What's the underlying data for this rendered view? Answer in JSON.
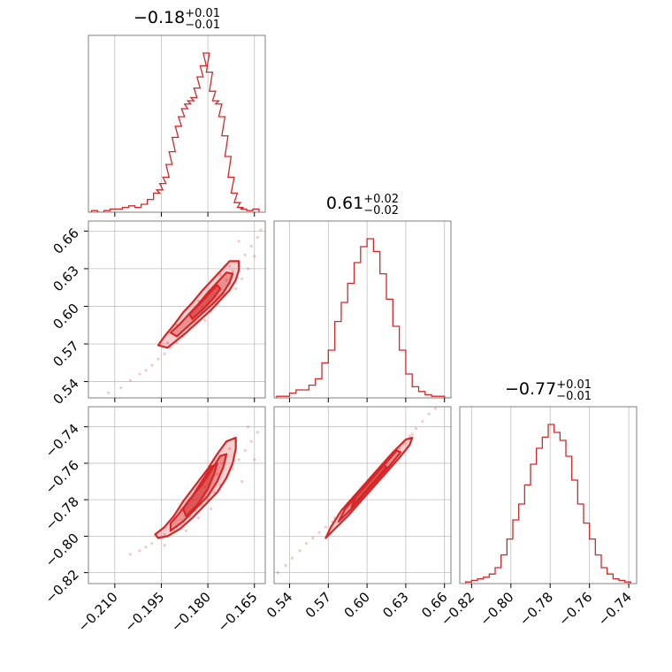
{
  "figure": {
    "accent": "#d62728"
  },
  "chart_data": [
    {
      "type": "histogram",
      "panel": "p00",
      "param_index": 0,
      "title": {
        "median": "−0.18",
        "plus": "+0.01",
        "minus": "−0.01"
      },
      "x": [
        -0.2185,
        -0.2165,
        -0.2145,
        -0.2125,
        -0.2105,
        -0.2085,
        -0.2065,
        -0.2045,
        -0.2025,
        -0.2005,
        -0.1985,
        -0.1965,
        -0.1955,
        -0.1945,
        -0.1935,
        -0.1925,
        -0.1915,
        -0.1905,
        -0.1895,
        -0.1885,
        -0.1875,
        -0.1865,
        -0.1855,
        -0.1845,
        -0.1835,
        -0.1825,
        -0.1815,
        -0.1805,
        -0.1795,
        -0.1785,
        -0.1775,
        -0.1765,
        -0.1755,
        -0.1745,
        -0.1735,
        -0.1725,
        -0.1715,
        -0.1705,
        -0.1695,
        -0.1685,
        -0.1665,
        -0.1645
      ],
      "values": [
        0.0,
        0.01,
        0.0,
        0.01,
        0.02,
        0.02,
        0.03,
        0.04,
        0.03,
        0.05,
        0.08,
        0.12,
        0.14,
        0.18,
        0.22,
        0.3,
        0.38,
        0.47,
        0.54,
        0.6,
        0.65,
        0.68,
        0.7,
        0.72,
        0.78,
        0.85,
        0.92,
        1.0,
        0.88,
        0.76,
        0.7,
        0.68,
        0.6,
        0.48,
        0.35,
        0.22,
        0.12,
        0.06,
        0.03,
        0.02,
        0.01,
        0.02
      ],
      "xlim": [
        -0.2185,
        -0.1615
      ],
      "grid": true
    },
    {
      "type": "histogram",
      "panel": "p11",
      "param_index": 1,
      "title": {
        "median": "0.61",
        "plus": "+0.02",
        "minus": "−0.02"
      },
      "x": [
        0.5325,
        0.5375,
        0.5425,
        0.5475,
        0.5525,
        0.5575,
        0.5625,
        0.5675,
        0.5725,
        0.5775,
        0.5825,
        0.5875,
        0.5925,
        0.5975,
        0.6025,
        0.6075,
        0.6125,
        0.6175,
        0.6225,
        0.6275,
        0.6325,
        0.6375,
        0.6425,
        0.6475,
        0.6525,
        0.6575,
        0.6625
      ],
      "values": [
        0.01,
        0.01,
        0.03,
        0.05,
        0.05,
        0.08,
        0.12,
        0.22,
        0.3,
        0.48,
        0.6,
        0.72,
        0.85,
        0.95,
        1.0,
        0.92,
        0.78,
        0.62,
        0.45,
        0.3,
        0.15,
        0.07,
        0.04,
        0.02,
        0.01,
        0.01,
        0.0
      ],
      "xlim": [
        0.528,
        0.665
      ],
      "grid": true
    },
    {
      "type": "histogram",
      "panel": "p22",
      "param_index": 2,
      "title": {
        "median": "−0.77",
        "plus": "+0.01",
        "minus": "−0.01"
      },
      "x": [
        -0.8215,
        -0.8185,
        -0.8155,
        -0.8125,
        -0.8095,
        -0.8065,
        -0.8035,
        -0.8005,
        -0.7975,
        -0.7945,
        -0.7915,
        -0.7885,
        -0.7855,
        -0.7825,
        -0.7795,
        -0.7765,
        -0.7735,
        -0.7705,
        -0.7675,
        -0.7645,
        -0.7615,
        -0.7585,
        -0.7555,
        -0.7525,
        -0.7495,
        -0.7465,
        -0.7435,
        -0.7405
      ],
      "values": [
        0.01,
        0.02,
        0.03,
        0.04,
        0.06,
        0.1,
        0.18,
        0.28,
        0.4,
        0.5,
        0.62,
        0.75,
        0.85,
        0.92,
        1.0,
        0.95,
        0.9,
        0.8,
        0.65,
        0.5,
        0.38,
        0.28,
        0.18,
        0.1,
        0.06,
        0.03,
        0.02,
        0.01
      ],
      "xlim": [
        -0.826,
        -0.736
      ],
      "grid": true
    },
    {
      "type": "scatter",
      "panel": "p10",
      "x_param": 0,
      "y_param": 1,
      "samples": [
        [
          -0.212,
          0.531
        ],
        [
          -0.208,
          0.535
        ],
        [
          -0.205,
          0.541
        ],
        [
          -0.202,
          0.546
        ],
        [
          -0.2,
          0.549
        ],
        [
          -0.198,
          0.553
        ],
        [
          -0.196,
          0.558
        ],
        [
          -0.194,
          0.562
        ],
        [
          -0.192,
          0.567
        ],
        [
          -0.19,
          0.571
        ],
        [
          -0.188,
          0.576
        ],
        [
          -0.186,
          0.582
        ],
        [
          -0.184,
          0.588
        ],
        [
          -0.182,
          0.595
        ],
        [
          -0.18,
          0.602
        ],
        [
          -0.178,
          0.608
        ],
        [
          -0.176,
          0.614
        ],
        [
          -0.174,
          0.621
        ],
        [
          -0.172,
          0.628
        ],
        [
          -0.17,
          0.635
        ],
        [
          -0.168,
          0.641
        ],
        [
          -0.166,
          0.648
        ],
        [
          -0.164,
          0.655
        ],
        [
          -0.163,
          0.661
        ],
        [
          -0.185,
          0.596
        ],
        [
          -0.183,
          0.604
        ],
        [
          -0.179,
          0.596
        ],
        [
          -0.177,
          0.602
        ],
        [
          -0.175,
          0.609
        ],
        [
          -0.171,
          0.614
        ],
        [
          -0.169,
          0.622
        ],
        [
          -0.187,
          0.583
        ],
        [
          -0.181,
          0.589
        ],
        [
          -0.173,
          0.632
        ],
        [
          -0.167,
          0.63
        ],
        [
          -0.19,
          0.585
        ],
        [
          -0.176,
          0.625
        ],
        [
          -0.165,
          0.64
        ],
        [
          -0.193,
          0.571
        ],
        [
          -0.17,
          0.652
        ]
      ],
      "contours": [
        [
          [
            -0.193,
            0.567
          ],
          [
            -0.191,
            0.571
          ],
          [
            -0.187,
            0.579
          ],
          [
            -0.183,
            0.588
          ],
          [
            -0.179,
            0.597
          ],
          [
            -0.176,
            0.605
          ],
          [
            -0.173,
            0.613
          ],
          [
            -0.171,
            0.621
          ],
          [
            -0.17,
            0.629
          ],
          [
            -0.17,
            0.636
          ],
          [
            -0.173,
            0.636
          ],
          [
            -0.176,
            0.628
          ],
          [
            -0.179,
            0.62
          ],
          [
            -0.182,
            0.612
          ],
          [
            -0.185,
            0.603
          ],
          [
            -0.188,
            0.595
          ],
          [
            -0.191,
            0.585
          ],
          [
            -0.194,
            0.576
          ],
          [
            -0.196,
            0.569
          ]
        ],
        [
          [
            -0.19,
            0.576
          ],
          [
            -0.186,
            0.585
          ],
          [
            -0.182,
            0.594
          ],
          [
            -0.178,
            0.603
          ],
          [
            -0.175,
            0.611
          ],
          [
            -0.173,
            0.619
          ],
          [
            -0.172,
            0.626
          ],
          [
            -0.174,
            0.627
          ],
          [
            -0.177,
            0.619
          ],
          [
            -0.18,
            0.611
          ],
          [
            -0.183,
            0.602
          ],
          [
            -0.186,
            0.594
          ],
          [
            -0.189,
            0.586
          ],
          [
            -0.192,
            0.579
          ]
        ],
        [
          [
            -0.185,
            0.59
          ],
          [
            -0.181,
            0.599
          ],
          [
            -0.178,
            0.607
          ],
          [
            -0.176,
            0.614
          ],
          [
            -0.177,
            0.617
          ],
          [
            -0.18,
            0.609
          ],
          [
            -0.183,
            0.601
          ],
          [
            -0.186,
            0.594
          ]
        ]
      ],
      "xlim": [
        -0.2185,
        -0.1615
      ],
      "ylim": [
        0.527,
        0.668
      ],
      "grid": true
    },
    {
      "type": "scatter",
      "panel": "p20",
      "x_param": 0,
      "y_param": 2,
      "samples": [
        [
          -0.205,
          -0.81
        ],
        [
          -0.202,
          -0.808
        ],
        [
          -0.2,
          -0.806
        ],
        [
          -0.198,
          -0.804
        ],
        [
          -0.196,
          -0.801
        ],
        [
          -0.194,
          -0.799
        ],
        [
          -0.192,
          -0.797
        ],
        [
          -0.19,
          -0.795
        ],
        [
          -0.188,
          -0.792
        ],
        [
          -0.186,
          -0.789
        ],
        [
          -0.184,
          -0.786
        ],
        [
          -0.182,
          -0.783
        ],
        [
          -0.18,
          -0.78
        ],
        [
          -0.178,
          -0.776
        ],
        [
          -0.176,
          -0.772
        ],
        [
          -0.174,
          -0.768
        ],
        [
          -0.172,
          -0.763
        ],
        [
          -0.17,
          -0.758
        ],
        [
          -0.168,
          -0.753
        ],
        [
          -0.166,
          -0.748
        ],
        [
          -0.164,
          -0.743
        ],
        [
          -0.185,
          -0.78
        ],
        [
          -0.181,
          -0.773
        ],
        [
          -0.177,
          -0.766
        ],
        [
          -0.175,
          -0.76
        ],
        [
          -0.173,
          -0.752
        ],
        [
          -0.187,
          -0.797
        ],
        [
          -0.183,
          -0.79
        ],
        [
          -0.179,
          -0.785
        ],
        [
          -0.169,
          -0.77
        ],
        [
          -0.171,
          -0.748
        ],
        [
          -0.165,
          -0.758
        ],
        [
          -0.189,
          -0.785
        ],
        [
          -0.194,
          -0.805
        ],
        [
          -0.167,
          -0.74
        ],
        [
          -0.178,
          -0.758
        ]
      ],
      "contours": [
        [
          [
            -0.196,
            -0.801
          ],
          [
            -0.193,
            -0.8
          ],
          [
            -0.189,
            -0.796
          ],
          [
            -0.185,
            -0.79
          ],
          [
            -0.181,
            -0.783
          ],
          [
            -0.177,
            -0.776
          ],
          [
            -0.174,
            -0.768
          ],
          [
            -0.172,
            -0.76
          ],
          [
            -0.171,
            -0.752
          ],
          [
            -0.171,
            -0.746
          ],
          [
            -0.174,
            -0.748
          ],
          [
            -0.177,
            -0.755
          ],
          [
            -0.18,
            -0.763
          ],
          [
            -0.184,
            -0.772
          ],
          [
            -0.188,
            -0.781
          ],
          [
            -0.191,
            -0.789
          ],
          [
            -0.194,
            -0.795
          ],
          [
            -0.197,
            -0.799
          ]
        ],
        [
          [
            -0.192,
            -0.797
          ],
          [
            -0.188,
            -0.792
          ],
          [
            -0.184,
            -0.785
          ],
          [
            -0.18,
            -0.778
          ],
          [
            -0.177,
            -0.77
          ],
          [
            -0.175,
            -0.762
          ],
          [
            -0.174,
            -0.755
          ],
          [
            -0.176,
            -0.756
          ],
          [
            -0.179,
            -0.764
          ],
          [
            -0.182,
            -0.772
          ],
          [
            -0.186,
            -0.78
          ],
          [
            -0.189,
            -0.787
          ],
          [
            -0.192,
            -0.793
          ]
        ],
        [
          [
            -0.187,
            -0.789
          ],
          [
            -0.183,
            -0.782
          ],
          [
            -0.18,
            -0.774
          ],
          [
            -0.178,
            -0.766
          ],
          [
            -0.177,
            -0.76
          ],
          [
            -0.179,
            -0.762
          ],
          [
            -0.182,
            -0.77
          ],
          [
            -0.185,
            -0.778
          ],
          [
            -0.188,
            -0.785
          ]
        ]
      ],
      "xlim": [
        -0.2185,
        -0.1615
      ],
      "ylim": [
        -0.826,
        -0.729
      ],
      "grid": true
    },
    {
      "type": "scatter",
      "panel": "p21",
      "x_param": 1,
      "y_param": 2,
      "samples": [
        [
          0.531,
          -0.82
        ],
        [
          0.537,
          -0.816
        ],
        [
          0.542,
          -0.812
        ],
        [
          0.548,
          -0.808
        ],
        [
          0.553,
          -0.804
        ],
        [
          0.558,
          -0.801
        ],
        [
          0.563,
          -0.798
        ],
        [
          0.568,
          -0.795
        ],
        [
          0.573,
          -0.792
        ],
        [
          0.578,
          -0.788
        ],
        [
          0.583,
          -0.785
        ],
        [
          0.588,
          -0.781
        ],
        [
          0.593,
          -0.777
        ],
        [
          0.598,
          -0.773
        ],
        [
          0.603,
          -0.769
        ],
        [
          0.608,
          -0.765
        ],
        [
          0.613,
          -0.761
        ],
        [
          0.618,
          -0.757
        ],
        [
          0.623,
          -0.753
        ],
        [
          0.628,
          -0.749
        ],
        [
          0.633,
          -0.745
        ],
        [
          0.638,
          -0.741
        ],
        [
          0.643,
          -0.737
        ],
        [
          0.648,
          -0.733
        ],
        [
          0.653,
          -0.73
        ],
        [
          0.658,
          -0.727
        ],
        [
          0.661,
          -0.726
        ],
        [
          0.575,
          -0.79
        ],
        [
          0.585,
          -0.782
        ],
        [
          0.595,
          -0.776
        ],
        [
          0.605,
          -0.767
        ],
        [
          0.615,
          -0.76
        ],
        [
          0.625,
          -0.752
        ],
        [
          0.635,
          -0.744
        ]
      ],
      "contours": [
        [
          [
            0.568,
            -0.801
          ],
          [
            0.575,
            -0.796
          ],
          [
            0.585,
            -0.789
          ],
          [
            0.595,
            -0.781
          ],
          [
            0.605,
            -0.773
          ],
          [
            0.615,
            -0.765
          ],
          [
            0.625,
            -0.757
          ],
          [
            0.633,
            -0.75
          ],
          [
            0.635,
            -0.746
          ],
          [
            0.63,
            -0.747
          ],
          [
            0.62,
            -0.754
          ],
          [
            0.61,
            -0.762
          ],
          [
            0.6,
            -0.77
          ],
          [
            0.59,
            -0.778
          ],
          [
            0.58,
            -0.786
          ],
          [
            0.572,
            -0.795
          ]
        ],
        [
          [
            0.578,
            -0.792
          ],
          [
            0.588,
            -0.785
          ],
          [
            0.598,
            -0.777
          ],
          [
            0.608,
            -0.769
          ],
          [
            0.618,
            -0.761
          ],
          [
            0.626,
            -0.754
          ],
          [
            0.623,
            -0.753
          ],
          [
            0.613,
            -0.761
          ],
          [
            0.603,
            -0.769
          ],
          [
            0.593,
            -0.777
          ],
          [
            0.583,
            -0.785
          ]
        ],
        [
          [
            0.588,
            -0.784
          ],
          [
            0.598,
            -0.776
          ],
          [
            0.608,
            -0.768
          ],
          [
            0.615,
            -0.762
          ],
          [
            0.612,
            -0.761
          ],
          [
            0.602,
            -0.769
          ],
          [
            0.592,
            -0.777
          ]
        ]
      ],
      "xlim": [
        0.528,
        0.665
      ],
      "ylim": [
        -0.826,
        -0.729
      ],
      "grid": true
    }
  ],
  "axes": {
    "x_ticks": [
      {
        "values": [
          -0.21,
          -0.195,
          -0.18,
          -0.165
        ],
        "labels": [
          "−0.210",
          "−0.195",
          "−0.180",
          "−0.165"
        ]
      },
      {
        "values": [
          0.54,
          0.57,
          0.6,
          0.63,
          0.66
        ],
        "labels": [
          "0.54",
          "0.57",
          "0.60",
          "0.63",
          "0.66"
        ]
      },
      {
        "values": [
          -0.82,
          -0.8,
          -0.78,
          -0.76,
          -0.74
        ],
        "labels": [
          "−0.82",
          "−0.80",
          "−0.78",
          "−0.76",
          "−0.74"
        ]
      }
    ],
    "y_ticks": [
      null,
      {
        "values": [
          0.54,
          0.57,
          0.6,
          0.63,
          0.66
        ],
        "labels": [
          "0.54",
          "0.57",
          "0.60",
          "0.63",
          "0.66"
        ]
      },
      {
        "values": [
          -0.82,
          -0.8,
          -0.78,
          -0.76,
          -0.74
        ],
        "labels": [
          "−0.82",
          "−0.80",
          "−0.78",
          "−0.76",
          "−0.74"
        ]
      }
    ]
  }
}
